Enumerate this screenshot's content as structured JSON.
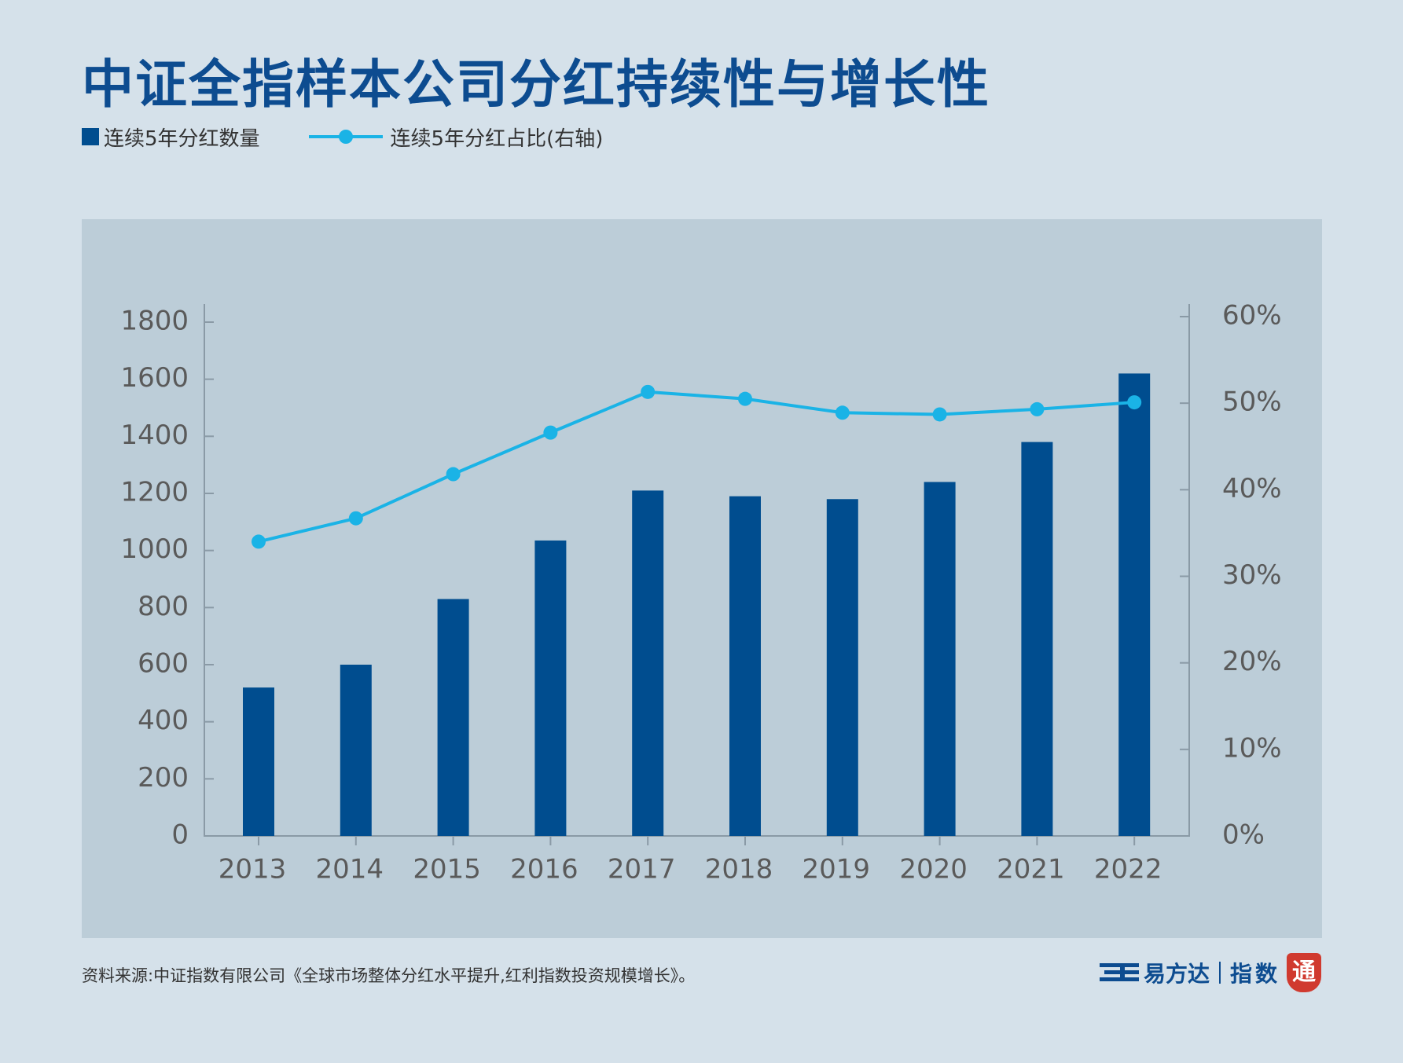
{
  "title": "中证全指样本公司分红持续性与增长性",
  "legend": {
    "bar_label": "连续5年分红数量",
    "line_label": "连续5年分红占比(右轴)"
  },
  "source": "资料来源:中证指数有限公司《全球市场整体分红水平提升,红利指数投资规模增长》。",
  "logo": {
    "brand": "易方达",
    "sub": "指数",
    "seal": "通"
  },
  "colors": {
    "bar": "#004d8f",
    "line": "#1ab3e6",
    "title": "#0d4c90",
    "plot_bg": "#bccdd8",
    "page_bg": "#d5e1ea"
  },
  "chart_data": {
    "type": "bar+line",
    "categories": [
      "2013",
      "2014",
      "2015",
      "2016",
      "2017",
      "2018",
      "2019",
      "2020",
      "2021",
      "2022"
    ],
    "series": [
      {
        "name": "连续5年分红数量",
        "type": "bar",
        "axis": "left",
        "values": [
          520,
          600,
          830,
          1035,
          1210,
          1190,
          1180,
          1240,
          1380,
          1620
        ]
      },
      {
        "name": "连续5年分红占比(右轴)",
        "type": "line",
        "axis": "right",
        "values": [
          0.34,
          0.367,
          0.418,
          0.466,
          0.513,
          0.505,
          0.489,
          0.487,
          0.493,
          0.501
        ]
      }
    ],
    "y_left": {
      "ylim": [
        0,
        1800
      ],
      "ticks": [
        0,
        200,
        400,
        600,
        800,
        1000,
        1200,
        1400,
        1600,
        1800
      ],
      "tick_labels": [
        "0",
        "200",
        "400",
        "600",
        "800",
        "1000",
        "1200",
        "1400",
        "1600",
        "1800"
      ]
    },
    "y_right": {
      "ylim": [
        0,
        0.6
      ],
      "ticks": [
        0,
        0.1,
        0.2,
        0.3,
        0.4,
        0.5,
        0.6
      ],
      "tick_labels": [
        "0%",
        "10%",
        "20%",
        "30%",
        "40%",
        "50%",
        "60%"
      ]
    },
    "grid": false,
    "legend_position": "top-left"
  }
}
